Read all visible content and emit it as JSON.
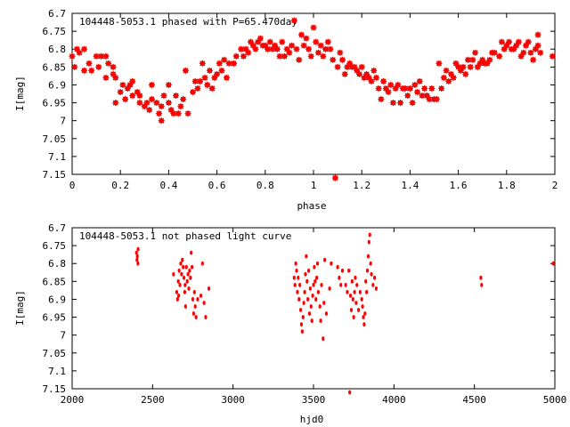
{
  "colors": {
    "point": "#ff0000",
    "axis": "#000000",
    "background": "#ffffff"
  },
  "chart_data": [
    {
      "type": "scatter",
      "title": "104448-5053.1 phased with P=65.470day",
      "xlabel": "phase",
      "ylabel": "I[mag]",
      "xlim": [
        0,
        2
      ],
      "ylim": [
        6.7,
        7.15
      ],
      "y_inverted": true,
      "x_ticks": [
        "0",
        "0.2",
        "0.4",
        "0.6",
        "0.8",
        "1",
        "1.2",
        "1.4",
        "1.6",
        "1.8",
        "2"
      ],
      "y_ticks": [
        "6.7",
        "6.75",
        "6.8",
        "6.85",
        "6.9",
        "6.95",
        "7",
        "7.05",
        "7.1",
        "7.15"
      ],
      "grid": false,
      "marker": "star",
      "points": [
        [
          0.0,
          6.82
        ],
        [
          0.01,
          6.85
        ],
        [
          0.02,
          6.8
        ],
        [
          0.03,
          6.81
        ],
        [
          0.05,
          6.8
        ],
        [
          0.05,
          6.86
        ],
        [
          0.07,
          6.84
        ],
        [
          0.08,
          6.86
        ],
        [
          0.1,
          6.82
        ],
        [
          0.11,
          6.85
        ],
        [
          0.12,
          6.82
        ],
        [
          0.14,
          6.88
        ],
        [
          0.14,
          6.82
        ],
        [
          0.15,
          6.84
        ],
        [
          0.17,
          6.85
        ],
        [
          0.17,
          6.87
        ],
        [
          0.18,
          6.88
        ],
        [
          0.18,
          6.95
        ],
        [
          0.2,
          6.92
        ],
        [
          0.21,
          6.9
        ],
        [
          0.22,
          6.94
        ],
        [
          0.23,
          6.91
        ],
        [
          0.24,
          6.9
        ],
        [
          0.25,
          6.89
        ],
        [
          0.25,
          6.93
        ],
        [
          0.27,
          6.92
        ],
        [
          0.28,
          6.93
        ],
        [
          0.28,
          6.95
        ],
        [
          0.3,
          6.96
        ],
        [
          0.31,
          6.95
        ],
        [
          0.32,
          6.97
        ],
        [
          0.33,
          6.94
        ],
        [
          0.33,
          6.9
        ],
        [
          0.35,
          6.95
        ],
        [
          0.36,
          6.98
        ],
        [
          0.37,
          6.96
        ],
        [
          0.37,
          7.0
        ],
        [
          0.38,
          6.93
        ],
        [
          0.4,
          6.9
        ],
        [
          0.4,
          6.95
        ],
        [
          0.41,
          6.97
        ],
        [
          0.42,
          6.98
        ],
        [
          0.43,
          6.93
        ],
        [
          0.44,
          6.98
        ],
        [
          0.45,
          6.96
        ],
        [
          0.46,
          6.94
        ],
        [
          0.47,
          6.86
        ],
        [
          0.48,
          6.98
        ],
        [
          0.5,
          6.92
        ],
        [
          0.51,
          6.89
        ],
        [
          0.52,
          6.91
        ],
        [
          0.53,
          6.89
        ],
        [
          0.54,
          6.84
        ],
        [
          0.55,
          6.88
        ],
        [
          0.56,
          6.9
        ],
        [
          0.57,
          6.86
        ],
        [
          0.58,
          6.91
        ],
        [
          0.59,
          6.88
        ],
        [
          0.6,
          6.87
        ],
        [
          0.61,
          6.84
        ],
        [
          0.62,
          6.86
        ],
        [
          0.63,
          6.83
        ],
        [
          0.64,
          6.88
        ],
        [
          0.65,
          6.84
        ],
        [
          0.67,
          6.84
        ],
        [
          0.68,
          6.82
        ],
        [
          0.7,
          6.8
        ],
        [
          0.71,
          6.82
        ],
        [
          0.72,
          6.8
        ],
        [
          0.73,
          6.81
        ],
        [
          0.74,
          6.78
        ],
        [
          0.75,
          6.79
        ],
        [
          0.76,
          6.8
        ],
        [
          0.77,
          6.78
        ],
        [
          0.78,
          6.77
        ],
        [
          0.79,
          6.79
        ],
        [
          0.8,
          6.79
        ],
        [
          0.81,
          6.8
        ],
        [
          0.82,
          6.78
        ],
        [
          0.83,
          6.8
        ],
        [
          0.84,
          6.79
        ],
        [
          0.85,
          6.8
        ],
        [
          0.86,
          6.82
        ],
        [
          0.87,
          6.78
        ],
        [
          0.88,
          6.82
        ],
        [
          0.89,
          6.8
        ],
        [
          0.9,
          6.81
        ],
        [
          0.91,
          6.79
        ],
        [
          0.92,
          6.72
        ],
        [
          0.93,
          6.8
        ],
        [
          0.94,
          6.83
        ],
        [
          0.95,
          6.76
        ],
        [
          0.96,
          6.79
        ],
        [
          0.97,
          6.77
        ],
        [
          0.98,
          6.8
        ],
        [
          0.99,
          6.82
        ],
        [
          1.0,
          6.74
        ],
        [
          1.01,
          6.78
        ],
        [
          1.02,
          6.81
        ],
        [
          1.03,
          6.79
        ],
        [
          1.04,
          6.82
        ],
        [
          1.05,
          6.8
        ],
        [
          1.06,
          6.78
        ],
        [
          1.07,
          6.8
        ],
        [
          1.08,
          6.83
        ],
        [
          1.09,
          7.16
        ],
        [
          1.1,
          6.85
        ],
        [
          1.11,
          6.81
        ],
        [
          1.12,
          6.83
        ],
        [
          1.13,
          6.87
        ],
        [
          1.14,
          6.85
        ],
        [
          1.15,
          6.84
        ],
        [
          1.16,
          6.85
        ],
        [
          1.17,
          6.85
        ],
        [
          1.18,
          6.86
        ],
        [
          1.19,
          6.87
        ],
        [
          1.2,
          6.85
        ],
        [
          1.21,
          6.88
        ],
        [
          1.22,
          6.87
        ],
        [
          1.23,
          6.88
        ],
        [
          1.24,
          6.89
        ],
        [
          1.25,
          6.86
        ],
        [
          1.26,
          6.88
        ],
        [
          1.27,
          6.91
        ],
        [
          1.28,
          6.94
        ],
        [
          1.29,
          6.89
        ],
        [
          1.3,
          6.91
        ],
        [
          1.31,
          6.92
        ],
        [
          1.32,
          6.9
        ],
        [
          1.33,
          6.95
        ],
        [
          1.34,
          6.91
        ],
        [
          1.35,
          6.9
        ],
        [
          1.36,
          6.95
        ],
        [
          1.37,
          6.91
        ],
        [
          1.38,
          6.91
        ],
        [
          1.39,
          6.93
        ],
        [
          1.4,
          6.91
        ],
        [
          1.41,
          6.95
        ],
        [
          1.42,
          6.9
        ],
        [
          1.43,
          6.92
        ],
        [
          1.44,
          6.89
        ],
        [
          1.45,
          6.93
        ],
        [
          1.46,
          6.91
        ],
        [
          1.47,
          6.93
        ],
        [
          1.48,
          6.94
        ],
        [
          1.49,
          6.91
        ],
        [
          1.5,
          6.94
        ],
        [
          1.51,
          6.94
        ],
        [
          1.52,
          6.84
        ],
        [
          1.53,
          6.91
        ],
        [
          1.54,
          6.88
        ],
        [
          1.55,
          6.86
        ],
        [
          1.56,
          6.89
        ],
        [
          1.57,
          6.87
        ],
        [
          1.58,
          6.88
        ],
        [
          1.59,
          6.84
        ],
        [
          1.6,
          6.85
        ],
        [
          1.61,
          6.86
        ],
        [
          1.62,
          6.85
        ],
        [
          1.63,
          6.87
        ],
        [
          1.64,
          6.83
        ],
        [
          1.65,
          6.85
        ],
        [
          1.66,
          6.83
        ],
        [
          1.67,
          6.81
        ],
        [
          1.68,
          6.85
        ],
        [
          1.69,
          6.84
        ],
        [
          1.7,
          6.83
        ],
        [
          1.71,
          6.84
        ],
        [
          1.72,
          6.84
        ],
        [
          1.73,
          6.83
        ],
        [
          1.74,
          6.81
        ],
        [
          1.75,
          6.81
        ],
        [
          1.77,
          6.82
        ],
        [
          1.78,
          6.78
        ],
        [
          1.79,
          6.8
        ],
        [
          1.8,
          6.79
        ],
        [
          1.81,
          6.78
        ],
        [
          1.82,
          6.8
        ],
        [
          1.83,
          6.8
        ],
        [
          1.84,
          6.79
        ],
        [
          1.85,
          6.78
        ],
        [
          1.86,
          6.82
        ],
        [
          1.87,
          6.81
        ],
        [
          1.88,
          6.79
        ],
        [
          1.89,
          6.78
        ],
        [
          1.9,
          6.81
        ],
        [
          1.91,
          6.83
        ],
        [
          1.92,
          6.8
        ],
        [
          1.93,
          6.79
        ],
        [
          1.93,
          6.76
        ],
        [
          1.94,
          6.81
        ],
        [
          1.99,
          6.82
        ]
      ]
    },
    {
      "type": "scatter",
      "title": "104448-5053.1 not phased light curve",
      "xlabel": "hjd0",
      "ylabel": "I[mag]",
      "xlim": [
        2000,
        5000
      ],
      "ylim": [
        6.7,
        7.15
      ],
      "y_inverted": true,
      "x_ticks": [
        "2000",
        "2500",
        "3000",
        "3500",
        "4000",
        "4500",
        "5000"
      ],
      "y_ticks": [
        "6.7",
        "6.75",
        "6.8",
        "6.85",
        "6.9",
        "6.95",
        "7",
        "7.05",
        "7.1",
        "7.15"
      ],
      "grid": false,
      "marker": "dot",
      "points": [
        [
          2400,
          6.77
        ],
        [
          2403,
          6.79
        ],
        [
          2405,
          6.78
        ],
        [
          2409,
          6.8
        ],
        [
          2410,
          6.76
        ],
        [
          2630,
          6.83
        ],
        [
          2650,
          6.88
        ],
        [
          2655,
          6.9
        ],
        [
          2660,
          6.85
        ],
        [
          2662,
          6.89
        ],
        [
          2665,
          6.82
        ],
        [
          2670,
          6.86
        ],
        [
          2675,
          6.8
        ],
        [
          2680,
          6.83
        ],
        [
          2685,
          6.79
        ],
        [
          2690,
          6.81
        ],
        [
          2695,
          6.84
        ],
        [
          2700,
          6.88
        ],
        [
          2702,
          6.86
        ],
        [
          2705,
          6.92
        ],
        [
          2710,
          6.81
        ],
        [
          2715,
          6.85
        ],
        [
          2720,
          6.83
        ],
        [
          2725,
          6.87
        ],
        [
          2730,
          6.82
        ],
        [
          2735,
          6.84
        ],
        [
          2740,
          6.77
        ],
        [
          2745,
          6.81
        ],
        [
          2750,
          6.9
        ],
        [
          2755,
          6.94
        ],
        [
          2760,
          6.88
        ],
        [
          2765,
          6.92
        ],
        [
          2770,
          6.95
        ],
        [
          2780,
          6.9
        ],
        [
          2800,
          6.89
        ],
        [
          2810,
          6.8
        ],
        [
          2820,
          6.91
        ],
        [
          2830,
          6.95
        ],
        [
          2850,
          6.87
        ],
        [
          3380,
          6.84
        ],
        [
          3385,
          6.86
        ],
        [
          3390,
          6.8
        ],
        [
          3395,
          6.82
        ],
        [
          3400,
          6.88
        ],
        [
          3405,
          6.84
        ],
        [
          3410,
          6.9
        ],
        [
          3415,
          6.86
        ],
        [
          3420,
          6.93
        ],
        [
          3425,
          6.97
        ],
        [
          3430,
          6.99
        ],
        [
          3435,
          6.95
        ],
        [
          3440,
          6.91
        ],
        [
          3445,
          6.88
        ],
        [
          3450,
          6.83
        ],
        [
          3455,
          6.78
        ],
        [
          3460,
          6.85
        ],
        [
          3465,
          6.9
        ],
        [
          3470,
          6.82
        ],
        [
          3475,
          6.94
        ],
        [
          3480,
          6.87
        ],
        [
          3485,
          6.92
        ],
        [
          3490,
          6.96
        ],
        [
          3495,
          6.89
        ],
        [
          3500,
          6.86
        ],
        [
          3505,
          6.81
        ],
        [
          3510,
          6.85
        ],
        [
          3515,
          6.9
        ],
        [
          3520,
          6.84
        ],
        [
          3525,
          6.8
        ],
        [
          3530,
          6.88
        ],
        [
          3540,
          6.92
        ],
        [
          3545,
          6.96
        ],
        [
          3550,
          6.86
        ],
        [
          3560,
          7.01
        ],
        [
          3565,
          6.91
        ],
        [
          3570,
          6.79
        ],
        [
          3580,
          6.94
        ],
        [
          3600,
          6.87
        ],
        [
          3610,
          6.8
        ],
        [
          3650,
          6.81
        ],
        [
          3660,
          6.84
        ],
        [
          3670,
          6.86
        ],
        [
          3680,
          6.82
        ],
        [
          3700,
          6.86
        ],
        [
          3710,
          6.88
        ],
        [
          3720,
          6.82
        ],
        [
          3725,
          7.16
        ],
        [
          3730,
          6.89
        ],
        [
          3735,
          6.93
        ],
        [
          3740,
          6.85
        ],
        [
          3745,
          6.9
        ],
        [
          3750,
          6.95
        ],
        [
          3755,
          6.88
        ],
        [
          3760,
          6.84
        ],
        [
          3765,
          6.91
        ],
        [
          3770,
          6.86
        ],
        [
          3780,
          6.93
        ],
        [
          3790,
          6.88
        ],
        [
          3800,
          6.9
        ],
        [
          3805,
          6.92
        ],
        [
          3810,
          6.95
        ],
        [
          3815,
          6.97
        ],
        [
          3820,
          6.94
        ],
        [
          3825,
          6.85
        ],
        [
          3830,
          6.88
        ],
        [
          3835,
          6.82
        ],
        [
          3840,
          6.78
        ],
        [
          3845,
          6.74
        ],
        [
          3850,
          6.72
        ],
        [
          3855,
          6.8
        ],
        [
          3860,
          6.83
        ],
        [
          3870,
          6.86
        ],
        [
          3880,
          6.84
        ],
        [
          3890,
          6.87
        ],
        [
          4540,
          6.84
        ],
        [
          4545,
          6.86
        ],
        [
          4990,
          6.8
        ]
      ]
    }
  ]
}
